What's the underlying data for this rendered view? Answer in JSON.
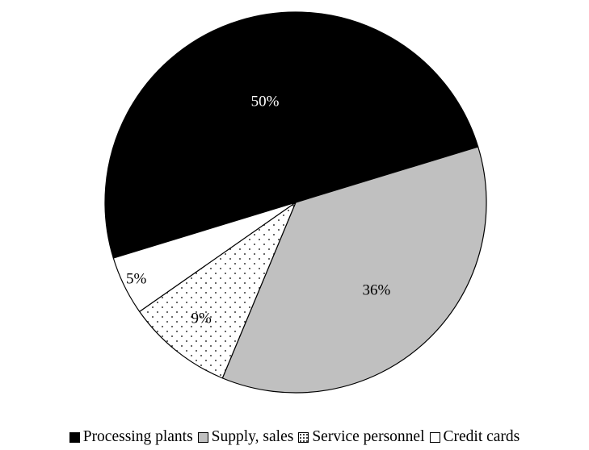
{
  "chart_data": {
    "type": "pie",
    "title": "",
    "categories": [
      "Processing plants",
      "Supply, sales",
      "Service personnel",
      "Credit cards"
    ],
    "values": [
      50,
      36,
      9,
      5
    ],
    "labels": [
      "50%",
      "36%",
      "9%",
      "5%"
    ],
    "units": "%",
    "colors": [
      "#000000",
      "#c0c0c0",
      "dotted-white",
      "#ffffff"
    ],
    "label_colors": [
      "#ffffff",
      "#000000",
      "#000000",
      "#000000"
    ],
    "legend_position": "bottom"
  }
}
